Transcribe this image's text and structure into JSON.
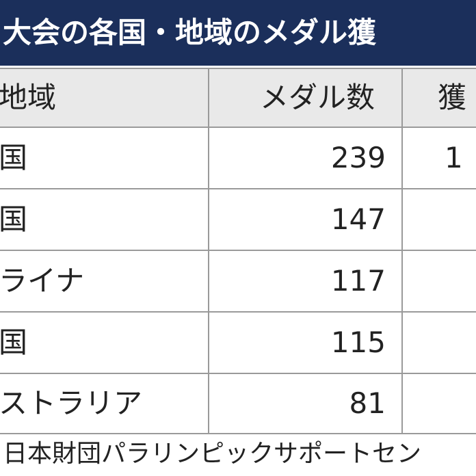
{
  "title": "大会の各国・地域のメダル獲",
  "table": {
    "header": [
      "地域",
      "メダル数",
      "獲"
    ],
    "rows": [
      [
        "国",
        239,
        "1"
      ],
      [
        "国",
        147
      ],
      [
        "ライナ",
        117
      ],
      [
        "国",
        115
      ],
      [
        "ストラリア",
        81
      ]
    ]
  },
  "source": "日本財団パラリンピックサポートセン"
}
